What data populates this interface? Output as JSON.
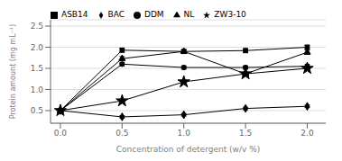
{
  "chart_data": {
    "type": "line",
    "xlabel": "Concentration of detergent (w/v %)",
    "ylabel": "Protein amount (mg mL⁻¹)",
    "x": [
      0.0,
      0.5,
      1.0,
      1.5,
      2.0
    ],
    "series": [
      {
        "name": "ASB14",
        "color": "black",
        "marker": "square",
        "values": [
          0.5,
          1.93,
          1.9,
          1.92,
          2.0
        ],
        "error": [
          0.03,
          0.05,
          0.04,
          0.05,
          0.05
        ]
      },
      {
        "name": "DDM",
        "color": "black",
        "marker": "circle",
        "values": [
          0.5,
          1.6,
          1.52,
          1.52,
          1.55
        ],
        "error": [
          0.03,
          0.04,
          0.04,
          0.04,
          0.04
        ]
      },
      {
        "name": "NL",
        "color": "black",
        "marker": "triangle",
        "values": [
          0.5,
          1.73,
          1.9,
          1.37,
          1.88
        ],
        "error": [
          0.03,
          0.05,
          0.04,
          0.04,
          0.05
        ]
      },
      {
        "name": "BAC",
        "color": "black",
        "marker": "diamond",
        "values": [
          0.5,
          0.35,
          0.4,
          0.55,
          0.6
        ],
        "error": [
          0.02,
          0.03,
          0.03,
          0.03,
          0.03
        ]
      },
      {
        "name": "ZW3-10",
        "color": "black",
        "marker": "star",
        "values": [
          0.5,
          0.73,
          1.18,
          1.37,
          1.5
        ],
        "error": [
          0.03,
          0.04,
          0.04,
          0.04,
          0.04
        ]
      }
    ],
    "xlim": [
      -0.08,
      2.15
    ],
    "ylim": [
      0.2,
      2.65
    ],
    "xticks": [
      {
        "value": 0,
        "label": "0.0"
      },
      0.5,
      {
        "value": 1,
        "label": "1.0"
      },
      1.5,
      {
        "value": 2,
        "label": "2.0"
      }
    ],
    "yticks": [
      0.5,
      {
        "value": 1,
        "label": "1.0"
      },
      1.5,
      {
        "value": 2,
        "label": "2.0"
      },
      2.5
    ],
    "grid": "y",
    "legend": "upper left"
  }
}
